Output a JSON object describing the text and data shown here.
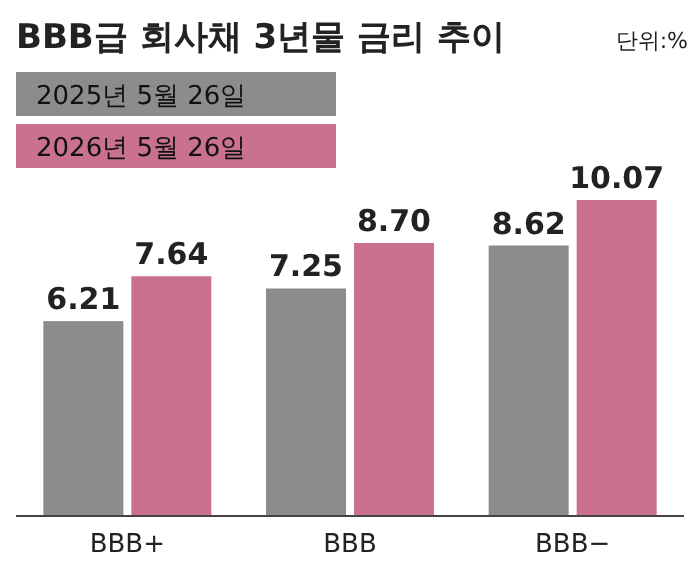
{
  "chart_data": {
    "type": "bar",
    "title": "BBB급 회사채 3년물 금리 추이",
    "annotations": [
      "단위:%"
    ],
    "categories": [
      "BBB+",
      "BBB",
      "BBB−"
    ],
    "series": [
      {
        "name": "2025년 5월 26일",
        "color": "#8c8c8c",
        "values": [
          6.21,
          7.25,
          8.62
        ],
        "value_labels": [
          "6.21",
          "7.25",
          "8.62"
        ]
      },
      {
        "name": "2026년 5월 26일",
        "color": "#c9718f",
        "values": [
          7.64,
          8.7,
          10.07
        ],
        "value_labels": [
          "7.64",
          "8.70",
          "10.07"
        ]
      }
    ],
    "legend": "top left"
  }
}
